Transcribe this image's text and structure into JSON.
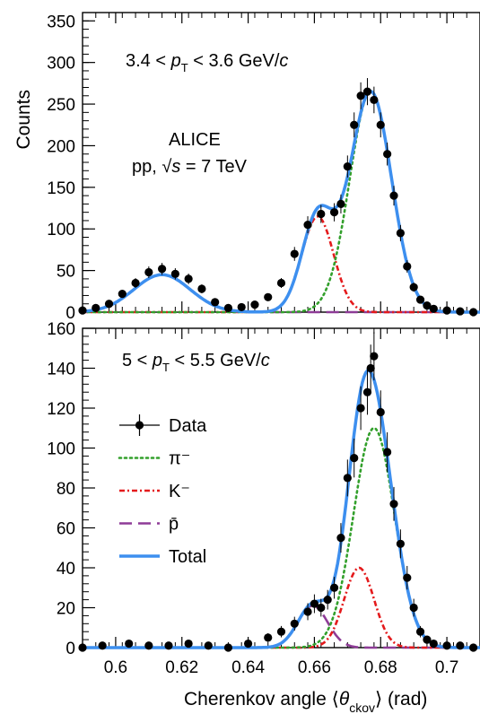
{
  "chart_data": [
    {
      "type": "scatter",
      "panel": "top",
      "ylabel": "Counts",
      "xlim": [
        0.59,
        0.71
      ],
      "ylim": [
        0,
        360
      ],
      "y_ticks": [
        0,
        50,
        100,
        150,
        200,
        250,
        300,
        350
      ],
      "annotations": {
        "pt_range": "3.4 < p_T < 3.6 GeV/c",
        "experiment": "ALICE",
        "system": "pp, √s = 7 TeV"
      },
      "series": [
        {
          "name": "Data",
          "style": "points",
          "x": [
            0.59,
            0.594,
            0.598,
            0.602,
            0.606,
            0.61,
            0.614,
            0.618,
            0.622,
            0.626,
            0.63,
            0.634,
            0.638,
            0.642,
            0.646,
            0.65,
            0.654,
            0.658,
            0.662,
            0.666,
            0.668,
            0.67,
            0.672,
            0.674,
            0.676,
            0.678,
            0.68,
            0.682,
            0.684,
            0.686,
            0.688,
            0.69,
            0.692,
            0.694,
            0.696,
            0.7,
            0.704,
            0.708
          ],
          "y": [
            2,
            5,
            10,
            22,
            35,
            48,
            52,
            46,
            40,
            28,
            12,
            5,
            6,
            9,
            18,
            35,
            70,
            105,
            118,
            120,
            130,
            175,
            225,
            260,
            265,
            255,
            225,
            190,
            140,
            95,
            55,
            30,
            15,
            8,
            4,
            2,
            1,
            0
          ]
        },
        {
          "name": "π⁻",
          "style": "dotted",
          "color": "#33a02c",
          "params": {
            "amp": 265,
            "mean": 0.677,
            "sigma": 0.0063
          }
        },
        {
          "name": "K⁻",
          "style": "dash-dot",
          "color": "#e41a1c",
          "params": {
            "amp": 115,
            "mean": 0.661,
            "sigma": 0.0048
          }
        },
        {
          "name": "p̄",
          "style": "dashed",
          "color": "#8e3c97",
          "params": {
            "amp": 45,
            "mean": 0.614,
            "sigma": 0.0085
          }
        },
        {
          "name": "Total",
          "style": "solid",
          "color": "#3d8fef"
        }
      ]
    },
    {
      "type": "scatter",
      "panel": "bottom",
      "xlabel": "Cherenkov angle ⟨θ_ckov⟩ (rad)",
      "xlim": [
        0.59,
        0.71
      ],
      "ylim": [
        0,
        160
      ],
      "x_ticks": [
        0.6,
        0.62,
        0.64,
        0.66,
        0.68,
        0.7
      ],
      "x_tick_labels": [
        "0.6",
        "0.62",
        "0.64",
        "0.66",
        "0.68",
        "0.7"
      ],
      "y_ticks": [
        0,
        20,
        40,
        60,
        80,
        100,
        120,
        140,
        160
      ],
      "annotations": {
        "pt_range": "5 < p_T < 5.5 GeV/c"
      },
      "legend": {
        "placement": "left-center",
        "entries": [
          "Data",
          "π⁻",
          "K⁻",
          "p̄",
          "Total"
        ]
      },
      "series": [
        {
          "name": "Data",
          "style": "points",
          "x": [
            0.59,
            0.596,
            0.604,
            0.61,
            0.616,
            0.622,
            0.628,
            0.634,
            0.64,
            0.646,
            0.65,
            0.654,
            0.658,
            0.66,
            0.662,
            0.664,
            0.666,
            0.668,
            0.67,
            0.672,
            0.674,
            0.676,
            0.677,
            0.678,
            0.68,
            0.682,
            0.684,
            0.686,
            0.688,
            0.69,
            0.692,
            0.694,
            0.696,
            0.7,
            0.704,
            0.708
          ],
          "y": [
            0,
            1,
            2,
            1,
            1,
            2,
            1,
            0,
            2,
            5,
            8,
            12,
            18,
            22,
            20,
            24,
            30,
            55,
            85,
            95,
            120,
            128,
            140,
            146,
            118,
            98,
            72,
            52,
            35,
            20,
            8,
            4,
            2,
            1,
            1,
            0
          ]
        },
        {
          "name": "π⁻",
          "style": "dotted",
          "color": "#33a02c",
          "params": {
            "amp": 110,
            "mean": 0.678,
            "sigma": 0.0062
          }
        },
        {
          "name": "K⁻",
          "style": "dash-dot",
          "color": "#e41a1c",
          "params": {
            "amp": 40,
            "mean": 0.6735,
            "sigma": 0.0045
          }
        },
        {
          "name": "p̄",
          "style": "dashed",
          "color": "#8e3c97",
          "params": {
            "amp": 21,
            "mean": 0.6595,
            "sigma": 0.0045
          }
        },
        {
          "name": "Total",
          "style": "solid",
          "color": "#3d8fef"
        }
      ]
    }
  ]
}
